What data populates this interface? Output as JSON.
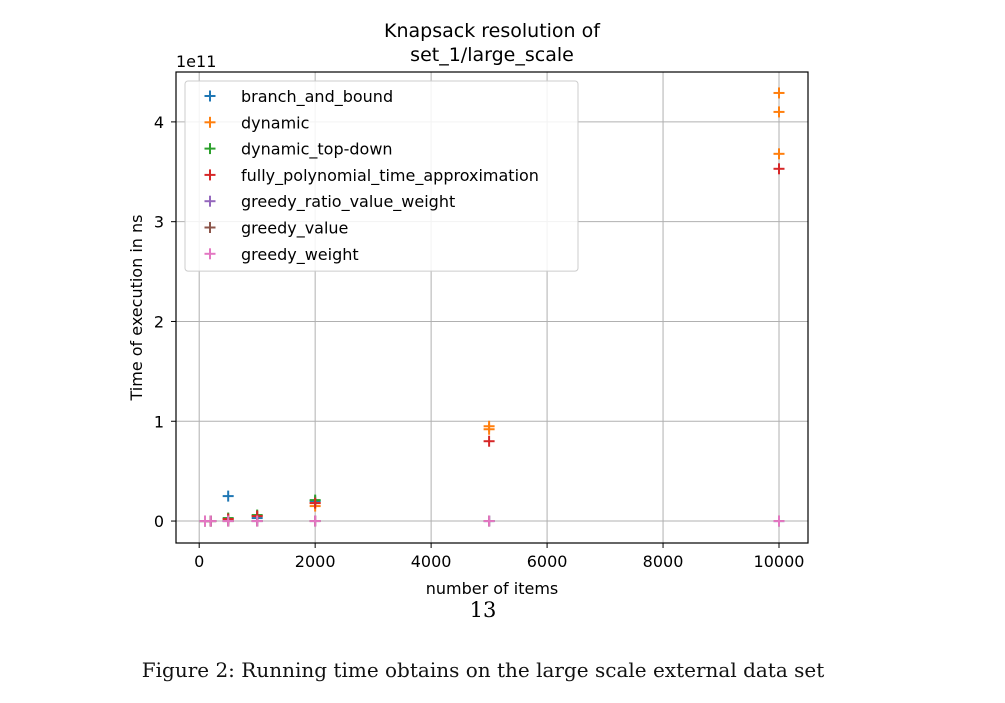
{
  "chart_data": {
    "type": "scatter",
    "title": "Knapsack resolution of\nset_1/large_scale",
    "xlabel": "number of items",
    "ylabel": "Time of execution in ns",
    "y_offset_label": "1e11",
    "xlim": [
      -400,
      10500
    ],
    "ylim": [
      -0.22,
      4.5
    ],
    "y_unit_multiplier": 100000000000,
    "x_ticks": [
      0,
      2000,
      4000,
      6000,
      8000,
      10000
    ],
    "y_ticks": [
      0,
      1,
      2,
      3,
      4
    ],
    "grid": true,
    "legend_position": "upper left",
    "marker": "+",
    "series": [
      {
        "name": "branch_and_bound",
        "color": "#1f77b4",
        "x": [
          100,
          200,
          500,
          1000,
          2000,
          5000,
          10000
        ],
        "y": [
          0.0,
          0.0,
          0.25,
          0.03,
          0.2,
          0.0,
          0.0
        ]
      },
      {
        "name": "dynamic",
        "color": "#ff7f0e",
        "x": [
          100,
          200,
          500,
          1000,
          2000,
          2000,
          5000,
          5000,
          10000,
          10000,
          10000
        ],
        "y": [
          0.0,
          0.0,
          0.02,
          0.05,
          0.15,
          0.18,
          0.92,
          0.95,
          4.29,
          4.1,
          3.68
        ]
      },
      {
        "name": "dynamic_top-down",
        "color": "#2ca02c",
        "x": [
          100,
          200,
          500,
          1000,
          2000
        ],
        "y": [
          0.0,
          0.0,
          0.03,
          0.06,
          0.21
        ]
      },
      {
        "name": "fully_polynomial_time_approximation",
        "color": "#d62728",
        "x": [
          100,
          200,
          500,
          1000,
          2000,
          5000,
          10000
        ],
        "y": [
          0.0,
          0.0,
          0.02,
          0.05,
          0.18,
          0.8,
          3.53
        ]
      },
      {
        "name": "greedy_ratio_value_weight",
        "color": "#9467bd",
        "x": [
          100,
          200,
          500,
          1000,
          2000,
          5000,
          10000
        ],
        "y": [
          0.0,
          0.0,
          0.0,
          0.0,
          0.0,
          0.0,
          0.0
        ]
      },
      {
        "name": "greedy_value",
        "color": "#8c564b",
        "x": [
          100,
          200,
          500,
          1000,
          2000,
          5000,
          10000
        ],
        "y": [
          0.0,
          0.0,
          0.0,
          0.0,
          0.0,
          0.0,
          0.0
        ]
      },
      {
        "name": "greedy_weight",
        "color": "#e377c2",
        "x": [
          100,
          200,
          500,
          1000,
          2000,
          5000,
          10000
        ],
        "y": [
          0.0,
          0.0,
          0.0,
          0.0,
          0.0,
          0.0,
          0.0
        ]
      }
    ]
  },
  "page_number": "13",
  "caption": "Figure 2: Running time obtains on the large scale external data set"
}
